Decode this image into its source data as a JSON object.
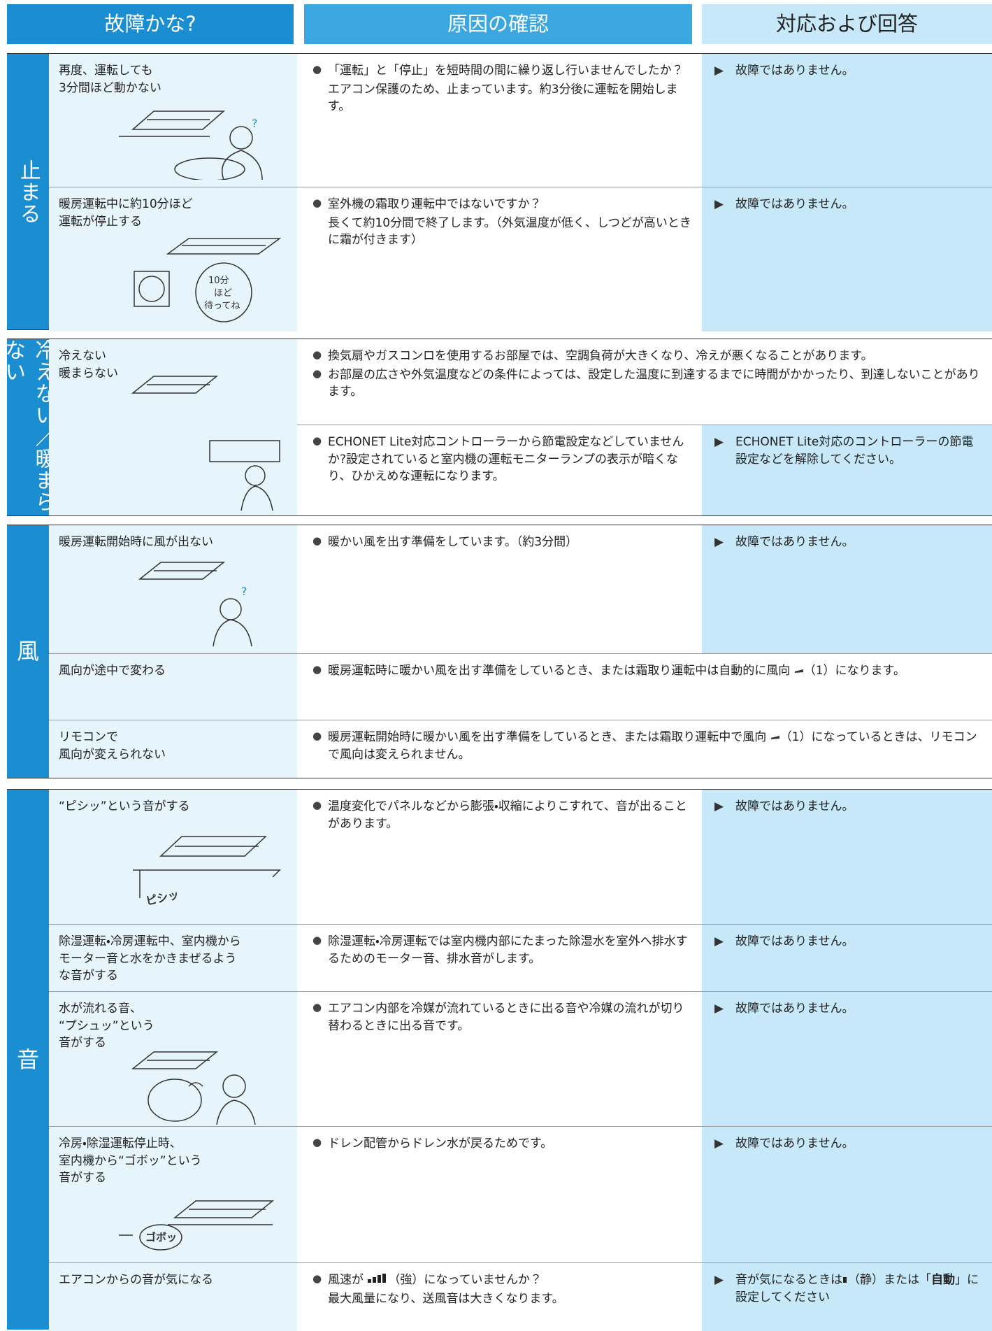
{
  "header": {
    "symptom": "故障かな?",
    "cause": "原因の確認",
    "answer": "対応および回答"
  },
  "sections": [
    {
      "label": "止まる",
      "rows": [
        {
          "symptom": [
            "再度、運転しても",
            "3分間ほど動かない"
          ],
          "cause": [
            "「運転」と「停止」を短時間の間に繰り返し行いませんでしたか？",
            "エアコン保護のため、止まっています。約3分後に運転を開始します。"
          ],
          "answer": "故障ではありません。"
        },
        {
          "symptom": [
            "暖房運転中に約10分ほど",
            "運転が停止する"
          ],
          "cause": [
            "室外機の霜取り運転中ではないですか？",
            "長くて約10分間で終了します。（外気温度が低く、しつどが高いときに霜が付きます）"
          ],
          "answer": "故障ではありません。",
          "illustration": [
            "10分",
            "ほど",
            "待ってね"
          ]
        }
      ]
    },
    {
      "label": "冷えない／暖まらない",
      "symptom": [
        "冷えない",
        "暖まらない"
      ],
      "rows": [
        {
          "cause": [
            "換気扇やガスコンロを使用するお部屋では、空調負荷が大きくなり、冷えが悪くなることがあります。",
            "お部屋の広さや外気温度などの条件によっては、設定した温度に到達するまでに時間がかかったり、到達しないことがあります。"
          ]
        },
        {
          "cause": [
            "ECHONET Lite対応コントローラーから節電設定などしていませんか?設定されていると室内機の運転モニターランプの表示が暗くなり、ひかえめな運転になります。"
          ],
          "answer": "ECHONET Lite対応のコントローラーの節電設定などを解除してください。"
        }
      ]
    },
    {
      "label": "風",
      "rows": [
        {
          "symptom": [
            "暖房運転開始時に風が出ない"
          ],
          "cause": [
            "暖かい風を出す準備をしています。（約3分間）"
          ],
          "answer": "故障ではありません。"
        },
        {
          "symptom": [
            "風向が途中で変わる"
          ],
          "cause": [
            "暖房運転時に暖かい風を出す準備をしているとき、または霜取り運転中は自動的に風向",
            "（1）になります。"
          ]
        },
        {
          "symptom": [
            "リモコンで",
            "風向が変えられない"
          ],
          "cause": [
            "暖房運転開始時に暖かい風を出す準備をしているとき、または霜取り運転中で風向",
            "（1）になっているときは、リモコンで風向は変えられません。"
          ]
        }
      ]
    },
    {
      "label": "音",
      "rows": [
        {
          "symptom": [
            "“ピシッ”という音がする"
          ],
          "cause": [
            "温度変化でパネルなどから膨張・収縮によりこすれて、音が出ることがあります。"
          ],
          "answer": "故障ではありません。",
          "illustration": [
            "ピシッ"
          ]
        },
        {
          "symptom": [
            "除湿運転・冷房運転中、室内機から",
            "モーター音と水をかきまぜるよう",
            "な音がする"
          ],
          "cause": [
            "除湿運転・冷房運転では室内機内部にたまった除湿水を室外へ排水するためのモーター音、排水音がします。"
          ],
          "answer": "故障ではありません。"
        },
        {
          "symptom": [
            "水が流れる音、",
            "“プシュッ”という",
            "音がする"
          ],
          "cause": [
            "エアコン内部を冷媒が流れているときに出る音や冷媒の流れが切り替わるときに出る音です。"
          ],
          "answer": "故障ではありません。"
        },
        {
          "symptom": [
            "冷房・除湿運転停止時、",
            "室内機から“ゴボッ”という",
            "音がする"
          ],
          "cause": [
            "ドレン配管からドレン水が戻るためです。"
          ],
          "answer": "故障ではありません。",
          "illustration": [
            "ゴボッ"
          ]
        },
        {
          "symptom": [
            "エアコンからの音が気になる"
          ],
          "cause": [
            "風速が",
            "（強）になっていませんか？",
            "最大風量になり、送風音は大きくなります。"
          ],
          "answer": [
            "音が気になるときは",
            "（静）または「",
            "自動",
            "」に設定してください"
          ]
        }
      ]
    }
  ]
}
